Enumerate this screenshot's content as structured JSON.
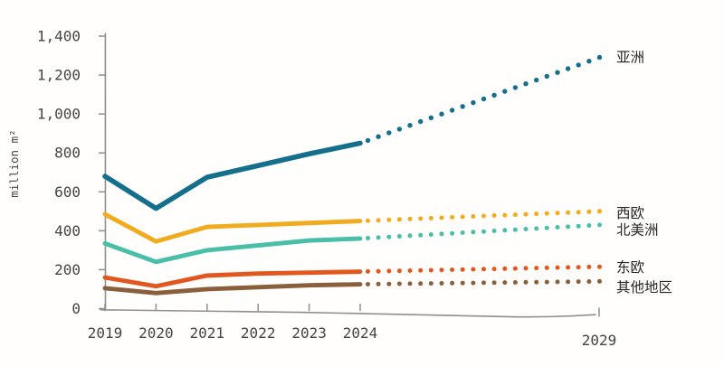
{
  "chart": {
    "y_axis_title": "million m²",
    "y_tick_labels": [
      "1,400",
      "1,200",
      "1,000",
      "800",
      "600",
      "400",
      "200",
      "0"
    ],
    "y_tick_values": [
      1400,
      1200,
      1000,
      800,
      600,
      400,
      200,
      0
    ],
    "x_tick_labels": [
      "2019",
      "2020",
      "2021",
      "2022",
      "2023",
      "2024"
    ],
    "x_tick_years": [
      2019,
      2020,
      2021,
      2022,
      2023,
      2024
    ],
    "forecast_tick_label": "2029",
    "forecast_tick_year": 2029,
    "colors": {
      "axis": "#8f8f8f",
      "tick_text": "#474340",
      "series_label_text": "#262626"
    }
  },
  "chart_data": {
    "type": "line",
    "title": "",
    "xlabel": "",
    "ylabel": "million m²",
    "ylim": [
      0,
      1400
    ],
    "grid": false,
    "legend_position": "right-end-labels",
    "style_note": "solid history 2019-2024, dotted forecast 2024-2029",
    "x": [
      2019,
      2020,
      2021,
      2022,
      2023,
      2024
    ],
    "forecast_x_end": 2029,
    "series": [
      {
        "key": "asia",
        "name": "亚洲",
        "color": "#146f8c",
        "values": [
          680,
          515,
          675,
          735,
          795,
          850
        ],
        "forecast_end_value": 1290
      },
      {
        "key": "western-europe",
        "name": "西欧",
        "color": "#f0ac1e",
        "values": [
          485,
          345,
          420,
          430,
          440,
          450
        ],
        "forecast_end_value": 500
      },
      {
        "key": "north-america",
        "name": "北美洲",
        "color": "#49bfa8",
        "values": [
          335,
          240,
          300,
          325,
          350,
          360
        ],
        "forecast_end_value": 430
      },
      {
        "key": "eastern-europe",
        "name": "东欧",
        "color": "#e2571e",
        "values": [
          160,
          115,
          170,
          180,
          185,
          190
        ],
        "forecast_end_value": 215
      },
      {
        "key": "other-regions",
        "name": "其他地区",
        "color": "#8a5f3b",
        "values": [
          105,
          80,
          100,
          110,
          120,
          125
        ],
        "forecast_end_value": 140
      }
    ]
  }
}
